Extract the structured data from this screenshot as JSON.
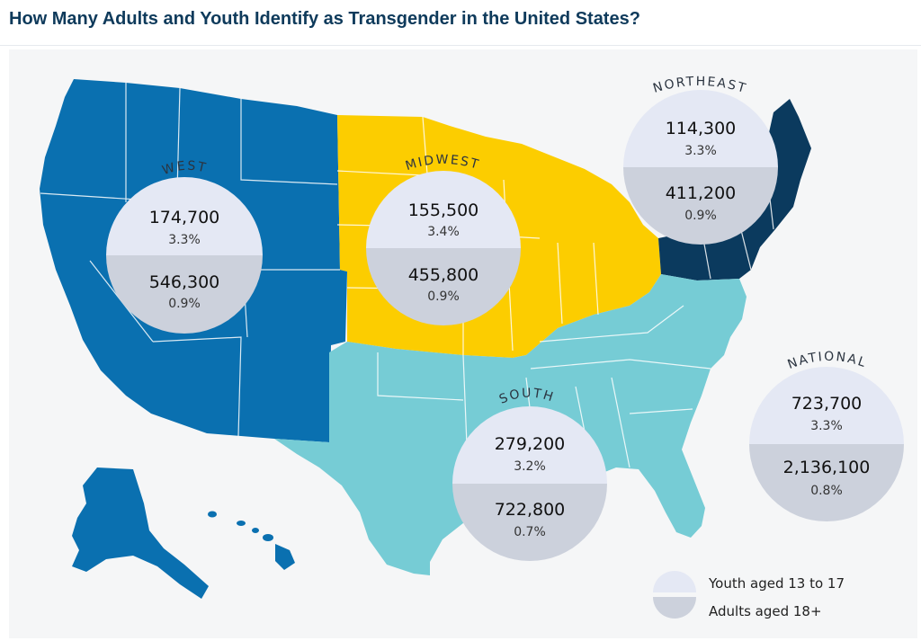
{
  "title": "How Many Adults and Youth Identify as Transgender in the United States?",
  "colors": {
    "west": "#0a70b0",
    "midwest": "#fccd00",
    "south": "#76ccd5",
    "northeast": "#0b3a5e",
    "youth_fill": "#e4e8f4",
    "adult_fill": "#ccd1dc"
  },
  "regions": {
    "west": {
      "label": "WEST",
      "youth": "174,700",
      "youth_pct": "3.3%",
      "adults": "546,300",
      "adults_pct": "0.9%"
    },
    "midwest": {
      "label": "MIDWEST",
      "youth": "155,500",
      "youth_pct": "3.4%",
      "adults": "455,800",
      "adults_pct": "0.9%"
    },
    "northeast": {
      "label": "NORTHEAST",
      "youth": "114,300",
      "youth_pct": "3.3%",
      "adults": "411,200",
      "adults_pct": "0.9%"
    },
    "south": {
      "label": "SOUTH",
      "youth": "279,200",
      "youth_pct": "3.2%",
      "adults": "722,800",
      "adults_pct": "0.7%"
    },
    "national": {
      "label": "NATIONAL",
      "youth": "723,700",
      "youth_pct": "3.3%",
      "adults": "2,136,100",
      "adults_pct": "0.8%"
    }
  },
  "legend": {
    "youth": "Youth aged 13 to 17",
    "adults": "Adults aged 18+"
  }
}
